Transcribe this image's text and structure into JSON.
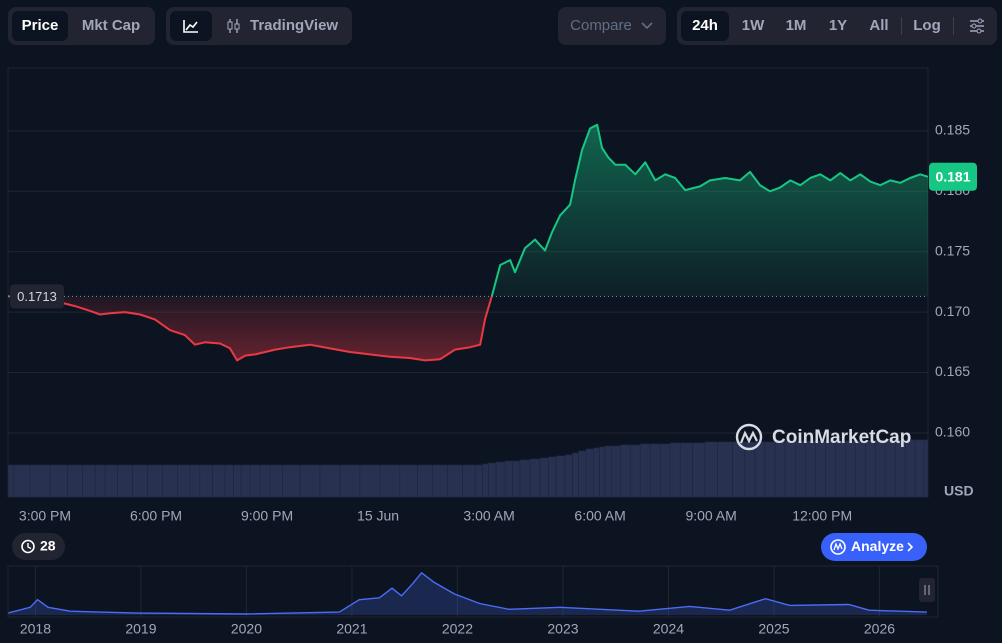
{
  "toolbar": {
    "views": [
      "Price",
      "Mkt Cap"
    ],
    "tradingview": "TradingView",
    "compare": "Compare",
    "ranges": [
      "24h",
      "1W",
      "1M",
      "1Y",
      "All"
    ],
    "log": "Log"
  },
  "chart_data": {
    "type": "line",
    "x": [
      14.0,
      14.32,
      14.86,
      15.41,
      15.81,
      16.22,
      16.49,
      16.76,
      17.16,
      17.57,
      17.97,
      18.38,
      18.78,
      19.05,
      19.32,
      19.73,
      20.0,
      20.19,
      20.41,
      20.68,
      20.95,
      21.22,
      21.62,
      22.16,
      22.7,
      23.24,
      23.78,
      24.32,
      24.86,
      25.27,
      25.68,
      26.08,
      26.49,
      26.76,
      26.89,
      27.08,
      27.3,
      27.57,
      27.7,
      27.97,
      28.24,
      28.51,
      28.7,
      28.92,
      29.19,
      29.32,
      29.51,
      29.73,
      29.92,
      30.05,
      30.22,
      30.41,
      30.68,
      30.95,
      31.22,
      31.49,
      31.76,
      32.03,
      32.3,
      32.7,
      32.97,
      33.38,
      33.78,
      34.05,
      34.32,
      34.59,
      34.86,
      35.14,
      35.41,
      35.68,
      35.95,
      36.22,
      36.49,
      36.76,
      37.03,
      37.3,
      37.57,
      37.84,
      38.11,
      38.38,
      38.65,
      38.86
    ],
    "values": [
      0.1713,
      0.1713,
      0.1712,
      0.1708,
      0.1705,
      0.1701,
      0.1698,
      0.1699,
      0.17,
      0.1698,
      0.1694,
      0.1685,
      0.1681,
      0.1673,
      0.1675,
      0.1674,
      0.167,
      0.166,
      0.1664,
      0.1665,
      0.1667,
      0.1669,
      0.1671,
      0.1673,
      0.167,
      0.1667,
      0.1665,
      0.1663,
      0.1662,
      0.166,
      0.1661,
      0.1669,
      0.1671,
      0.1673,
      0.1694,
      0.1714,
      0.1739,
      0.1743,
      0.1733,
      0.1753,
      0.176,
      0.1751,
      0.1766,
      0.178,
      0.1789,
      0.1809,
      0.1834,
      0.1852,
      0.1855,
      0.1836,
      0.1828,
      0.1822,
      0.1822,
      0.1814,
      0.1824,
      0.1809,
      0.1814,
      0.1811,
      0.1801,
      0.1804,
      0.1809,
      0.1811,
      0.1809,
      0.1816,
      0.1805,
      0.18,
      0.1803,
      0.1809,
      0.1805,
      0.1811,
      0.1814,
      0.1809,
      0.1815,
      0.1809,
      0.1814,
      0.1808,
      0.1805,
      0.1809,
      0.1807,
      0.1811,
      0.1814,
      0.1812
    ],
    "up_color": "#16c784",
    "down_color": "#ea3943",
    "reference_price": 0.1713,
    "last_price": {
      "value": 0.1812,
      "label": "0.181"
    },
    "currency": "USD",
    "watermark": "CoinMarketCap",
    "xlim": [
      14,
      38.86
    ],
    "xticks": [
      {
        "value": 15,
        "label": "3:00 PM"
      },
      {
        "value": 18,
        "label": "6:00 PM"
      },
      {
        "value": 21,
        "label": "9:00 PM"
      },
      {
        "value": 24,
        "label": "15 Jun"
      },
      {
        "value": 27,
        "label": "3:00 AM"
      },
      {
        "value": 30,
        "label": "6:00 AM"
      },
      {
        "value": 33,
        "label": "9:00 AM"
      },
      {
        "value": 36,
        "label": "12:00 PM"
      }
    ],
    "ylim": [
      0.1547,
      0.1902
    ],
    "yticks": [
      {
        "value": 0.16,
        "label": "0.160"
      },
      0.165,
      {
        "value": 0.17,
        "label": "0.170"
      },
      0.175,
      {
        "value": 0.18,
        "label": "0.180"
      },
      0.185
    ],
    "grid": true,
    "volume": {
      "values": [
        32,
        32,
        32,
        32,
        32,
        32,
        32,
        32,
        32,
        32,
        32,
        32,
        32,
        32,
        32,
        32,
        32,
        32,
        32,
        32,
        32,
        32,
        32,
        32,
        32,
        32,
        32,
        32,
        32,
        32,
        32,
        32,
        32,
        32,
        33,
        34,
        35,
        36,
        36,
        37,
        38,
        39,
        40,
        41,
        42,
        44,
        46,
        48,
        49,
        50,
        51,
        51,
        52,
        52,
        53,
        53,
        53,
        54,
        54,
        54,
        55,
        55,
        55,
        55,
        55,
        55,
        56,
        56,
        56,
        56,
        56,
        56,
        56,
        56,
        56,
        56,
        57,
        57,
        57,
        57,
        57,
        57
      ],
      "ylim": [
        0,
        60
      ],
      "color": "#283250"
    }
  },
  "alerts_count": 28,
  "analyze": "Analyze",
  "navigator": {
    "x": [
      2017.74,
      2017.95,
      2018.02,
      2018.12,
      2018.33,
      2018.61,
      2018.99,
      2019.99,
      2020.88,
      2021.07,
      2021.26,
      2021.38,
      2021.47,
      2021.57,
      2021.66,
      2021.78,
      2021.97,
      2022.21,
      2022.49,
      2022.97,
      2023.72,
      2024.2,
      2024.58,
      2024.92,
      2025.15,
      2025.71,
      2025.9,
      2026.45
    ],
    "values": [
      2,
      8,
      16,
      8,
      4,
      3,
      2,
      1,
      3,
      16,
      18,
      28,
      20,
      32,
      44,
      34,
      22,
      12,
      6,
      8,
      4,
      9,
      5,
      17,
      10,
      11,
      5,
      3
    ],
    "ylim": [
      0,
      48
    ],
    "xlim": [
      2017.74,
      2026.46
    ],
    "xticks": [
      2018,
      2019,
      2020,
      2021,
      2022,
      2023,
      2024,
      2025,
      2026
    ],
    "color": "#4b6cf7"
  }
}
